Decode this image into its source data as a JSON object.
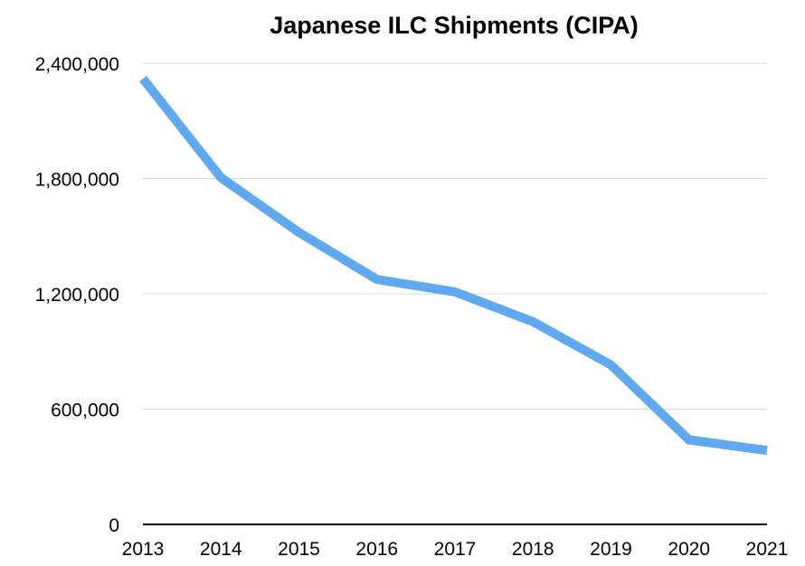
{
  "chart_data": {
    "type": "line",
    "title": "Japanese ILC Shipments (CIPA)",
    "xlabel": "",
    "ylabel": "",
    "x": [
      "2013",
      "2014",
      "2015",
      "2016",
      "2017",
      "2018",
      "2019",
      "2020",
      "2021"
    ],
    "series": [
      {
        "values": [
          2320000,
          1805000,
          1520000,
          1275000,
          1210000,
          1055000,
          830000,
          440000,
          385000
        ]
      }
    ],
    "ylim": [
      0,
      2400000
    ],
    "yticks": [
      0,
      600000,
      1200000,
      1800000,
      2400000
    ],
    "ytick_labels": [
      "0",
      "600,000",
      "1,200,000",
      "1,800,000",
      "2,400,000"
    ],
    "grid": "horizontal",
    "legend": "none",
    "colors": {
      "series": "#5ea9ef",
      "grid": "#d9d9d9",
      "axis": "#000000"
    }
  }
}
